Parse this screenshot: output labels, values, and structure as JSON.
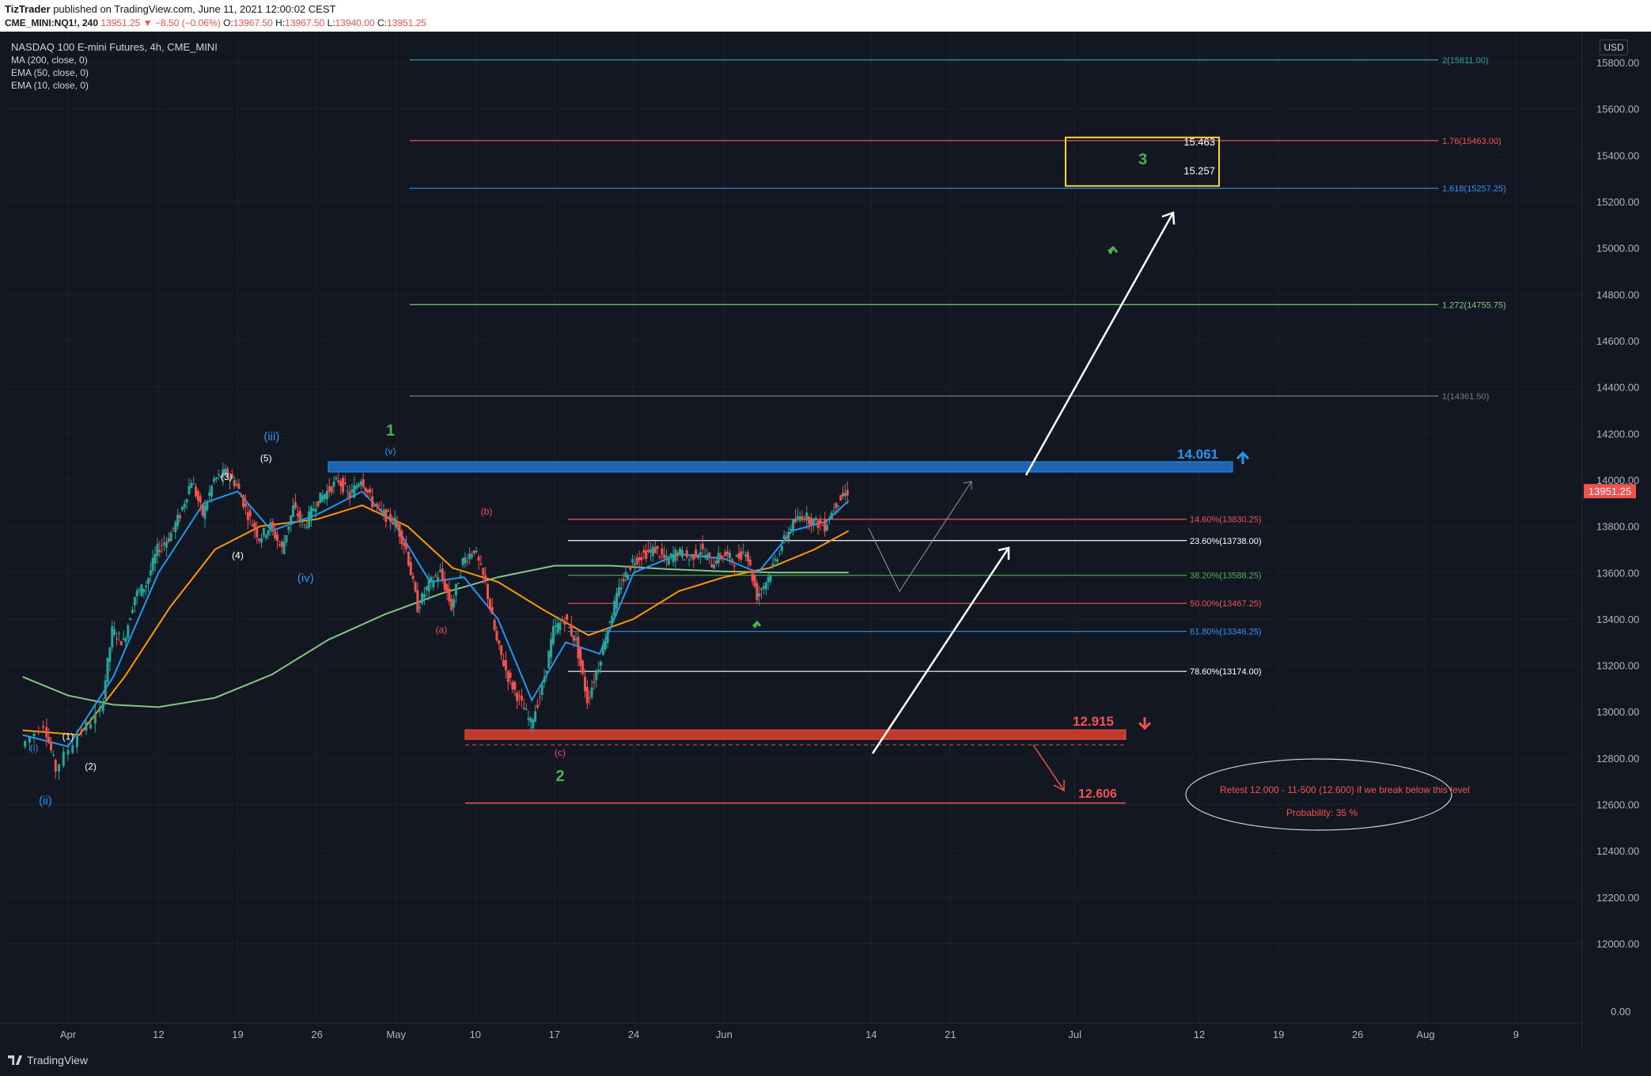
{
  "header": {
    "publisher": "TizTrader",
    "published_text": "published on TradingView.com, June 11, 2021 12:00:02 CEST",
    "symbol_line": "CME_MINI:NQ1!, 240",
    "last": "13951.25",
    "change": "−8.50 (−0.06%)",
    "o_label": "O:",
    "o": "13967.50",
    "h_label": "H:",
    "h": "13967.50",
    "l_label": "L:",
    "l": "13940.00",
    "c_label": "C:",
    "c": "13951.25"
  },
  "legend": {
    "title": "NASDAQ 100 E-mini Futures, 4h, CME_MINI",
    "indicators": [
      "MA (200, close, 0)",
      "EMA (50, close, 0)",
      "EMA (10, close, 0)"
    ]
  },
  "currency": "USD",
  "footer": {
    "brand": "TradingView"
  },
  "colors": {
    "background": "#131722",
    "bull": "#26a69a",
    "bear": "#ef5350",
    "ema10": "#2196f3",
    "ema50": "#ff9800",
    "ma200": "#81c784",
    "wave_green": "#4caf50",
    "wave_blue": "#2196f3",
    "wave_red": "#ef5350",
    "resistance": "#1e64b4",
    "support": "#c0392b",
    "target_box": "#fdd835"
  },
  "chart_data": {
    "type": "candlestick",
    "title": "NASDAQ 100 E-mini Futures, 4h, CME_MINI",
    "ylabel": "",
    "ylim": [
      11700,
      15900
    ],
    "y_ticks": [
      "15800.00",
      "15600.00",
      "15400.00",
      "15200.00",
      "15000.00",
      "14800.00",
      "14600.00",
      "14400.00",
      "14200.00",
      "14000.00",
      "13800.00",
      "13600.00",
      "13400.00",
      "13200.00",
      "13000.00",
      "12800.00",
      "12600.00",
      "12400.00",
      "12200.00",
      "12000.00"
    ],
    "y_bottom_label": "0.00",
    "x_ticks": [
      {
        "label": "Apr",
        "day": 4
      },
      {
        "label": "12",
        "day": 12
      },
      {
        "label": "19",
        "day": 19
      },
      {
        "label": "26",
        "day": 26
      },
      {
        "label": "May",
        "day": 33
      },
      {
        "label": "10",
        "day": 40
      },
      {
        "label": "17",
        "day": 47
      },
      {
        "label": "24",
        "day": 54
      },
      {
        "label": "Jun",
        "day": 62
      },
      {
        "label": "14",
        "day": 75
      },
      {
        "label": "21",
        "day": 82
      },
      {
        "label": "Jul",
        "day": 93
      },
      {
        "label": "12",
        "day": 104
      },
      {
        "label": "19",
        "day": 111
      },
      {
        "label": "26",
        "day": 118
      },
      {
        "label": "Aug",
        "day": 124
      },
      {
        "label": "9",
        "day": 132
      }
    ],
    "price_series": [
      {
        "day": 0,
        "price": 12850
      },
      {
        "day": 2,
        "price": 12950
      },
      {
        "day": 3,
        "price": 12750
      },
      {
        "day": 5,
        "price": 12900
      },
      {
        "day": 7,
        "price": 13000
      },
      {
        "day": 8,
        "price": 13350
      },
      {
        "day": 9,
        "price": 13300
      },
      {
        "day": 10,
        "price": 13500
      },
      {
        "day": 11,
        "price": 13550
      },
      {
        "day": 12,
        "price": 13700
      },
      {
        "day": 13,
        "price": 13750
      },
      {
        "day": 14,
        "price": 13850
      },
      {
        "day": 15,
        "price": 14000
      },
      {
        "day": 16,
        "price": 13850
      },
      {
        "day": 17,
        "price": 14000
      },
      {
        "day": 18,
        "price": 14030
      },
      {
        "day": 19,
        "price": 13980
      },
      {
        "day": 20,
        "price": 13850
      },
      {
        "day": 21,
        "price": 13750
      },
      {
        "day": 22,
        "price": 13800
      },
      {
        "day": 23,
        "price": 13700
      },
      {
        "day": 24,
        "price": 13880
      },
      {
        "day": 25,
        "price": 13800
      },
      {
        "day": 26,
        "price": 13900
      },
      {
        "day": 27,
        "price": 13950
      },
      {
        "day": 28,
        "price": 14000
      },
      {
        "day": 29,
        "price": 13930
      },
      {
        "day": 30,
        "price": 14010
      },
      {
        "day": 31,
        "price": 13900
      },
      {
        "day": 32,
        "price": 13850
      },
      {
        "day": 33,
        "price": 13820
      },
      {
        "day": 34,
        "price": 13700
      },
      {
        "day": 35,
        "price": 13450
      },
      {
        "day": 36,
        "price": 13550
      },
      {
        "day": 37,
        "price": 13600
      },
      {
        "day": 38,
        "price": 13450
      },
      {
        "day": 39,
        "price": 13650
      },
      {
        "day": 40,
        "price": 13700
      },
      {
        "day": 41,
        "price": 13550
      },
      {
        "day": 42,
        "price": 13300
      },
      {
        "day": 43,
        "price": 13150
      },
      {
        "day": 44,
        "price": 13050
      },
      {
        "day": 45,
        "price": 12950
      },
      {
        "day": 46,
        "price": 13100
      },
      {
        "day": 47,
        "price": 13350
      },
      {
        "day": 48,
        "price": 13400
      },
      {
        "day": 49,
        "price": 13300
      },
      {
        "day": 50,
        "price": 13050
      },
      {
        "day": 51,
        "price": 13200
      },
      {
        "day": 52,
        "price": 13400
      },
      {
        "day": 53,
        "price": 13550
      },
      {
        "day": 54,
        "price": 13650
      },
      {
        "day": 55,
        "price": 13680
      },
      {
        "day": 56,
        "price": 13700
      },
      {
        "day": 57,
        "price": 13650
      },
      {
        "day": 58,
        "price": 13690
      },
      {
        "day": 59,
        "price": 13660
      },
      {
        "day": 60,
        "price": 13700
      },
      {
        "day": 61,
        "price": 13640
      },
      {
        "day": 62,
        "price": 13680
      },
      {
        "day": 63,
        "price": 13650
      },
      {
        "day": 64,
        "price": 13700
      },
      {
        "day": 65,
        "price": 13500
      },
      {
        "day": 66,
        "price": 13580
      },
      {
        "day": 67,
        "price": 13700
      },
      {
        "day": 68,
        "price": 13800
      },
      {
        "day": 69,
        "price": 13850
      },
      {
        "day": 70,
        "price": 13820
      },
      {
        "day": 71,
        "price": 13800
      },
      {
        "day": 72,
        "price": 13900
      },
      {
        "day": 73,
        "price": 13950
      }
    ],
    "ema10": [
      {
        "day": 0,
        "price": 12900
      },
      {
        "day": 4,
        "price": 12850
      },
      {
        "day": 8,
        "price": 13150
      },
      {
        "day": 12,
        "price": 13600
      },
      {
        "day": 16,
        "price": 13900
      },
      {
        "day": 19,
        "price": 13950
      },
      {
        "day": 22,
        "price": 13780
      },
      {
        "day": 26,
        "price": 13850
      },
      {
        "day": 30,
        "price": 13950
      },
      {
        "day": 33,
        "price": 13800
      },
      {
        "day": 36,
        "price": 13560
      },
      {
        "day": 39,
        "price": 13580
      },
      {
        "day": 42,
        "price": 13400
      },
      {
        "day": 45,
        "price": 13050
      },
      {
        "day": 48,
        "price": 13300
      },
      {
        "day": 51,
        "price": 13250
      },
      {
        "day": 54,
        "price": 13600
      },
      {
        "day": 58,
        "price": 13680
      },
      {
        "day": 62,
        "price": 13660
      },
      {
        "day": 65,
        "price": 13600
      },
      {
        "day": 68,
        "price": 13780
      },
      {
        "day": 71,
        "price": 13820
      },
      {
        "day": 73,
        "price": 13910
      }
    ],
    "ema50": [
      {
        "day": 0,
        "price": 12920
      },
      {
        "day": 5,
        "price": 12900
      },
      {
        "day": 9,
        "price": 13150
      },
      {
        "day": 13,
        "price": 13450
      },
      {
        "day": 17,
        "price": 13700
      },
      {
        "day": 21,
        "price": 13800
      },
      {
        "day": 26,
        "price": 13830
      },
      {
        "day": 30,
        "price": 13890
      },
      {
        "day": 34,
        "price": 13800
      },
      {
        "day": 38,
        "price": 13620
      },
      {
        "day": 42,
        "price": 13560
      },
      {
        "day": 46,
        "price": 13440
      },
      {
        "day": 50,
        "price": 13330
      },
      {
        "day": 54,
        "price": 13400
      },
      {
        "day": 58,
        "price": 13520
      },
      {
        "day": 62,
        "price": 13580
      },
      {
        "day": 66,
        "price": 13620
      },
      {
        "day": 70,
        "price": 13700
      },
      {
        "day": 73,
        "price": 13780
      }
    ],
    "ma200": [
      {
        "day": 0,
        "price": 13150
      },
      {
        "day": 4,
        "price": 13070
      },
      {
        "day": 8,
        "price": 13030
      },
      {
        "day": 12,
        "price": 13020
      },
      {
        "day": 17,
        "price": 13060
      },
      {
        "day": 22,
        "price": 13160
      },
      {
        "day": 27,
        "price": 13310
      },
      {
        "day": 32,
        "price": 13420
      },
      {
        "day": 37,
        "price": 13510
      },
      {
        "day": 42,
        "price": 13580
      },
      {
        "day": 47,
        "price": 13630
      },
      {
        "day": 52,
        "price": 13630
      },
      {
        "day": 57,
        "price": 13615
      },
      {
        "day": 62,
        "price": 13605
      },
      {
        "day": 67,
        "price": 13600
      },
      {
        "day": 73,
        "price": 13600
      }
    ],
    "fib_extension": [
      {
        "label": "2(15811.00)",
        "price": 15811,
        "color": "#26a69a"
      },
      {
        "label": "1.76(15463.00)",
        "price": 15463,
        "color": "#ef5350"
      },
      {
        "label": "1.618(15257.25)",
        "price": 15257.25,
        "color": "#2196f3"
      },
      {
        "label": "1.272(14755.75)",
        "price": 14755.75,
        "color": "#81c784"
      },
      {
        "label": "1(14361.50)",
        "price": 14361.5,
        "color": "#787b86"
      }
    ],
    "fib_retracement": [
      {
        "label": "14.60%(13830.25)",
        "price": 13830.25,
        "color": "#ef5350"
      },
      {
        "label": "23.60%(13738.00)",
        "price": 13738,
        "color": "#ffffff"
      },
      {
        "label": "38.20%(13588.25)",
        "price": 13588.25,
        "color": "#4caf50"
      },
      {
        "label": "50.00%(13467.25)",
        "price": 13467.25,
        "color": "#ef5350"
      },
      {
        "label": "61.80%(13346.25)",
        "price": 13346.25,
        "color": "#2196f3"
      },
      {
        "label": "78.60%(13174.00)",
        "price": 13174,
        "color": "#ffffff"
      }
    ],
    "zones": {
      "resistance_label": "14.061",
      "resistance_price": 14061,
      "support_label": "12.915",
      "support_price": 12915,
      "lower_target_label": "12.606",
      "lower_target_price": 12606
    },
    "target_box": {
      "top_label": "15.463",
      "bottom_label": "15.257",
      "wave": "3",
      "top_price": 15463,
      "bottom_price": 15257
    },
    "wave_labels": [
      {
        "text": "(i)",
        "day": 1,
        "price": 12830,
        "color": "#2196f3"
      },
      {
        "text": "(1)",
        "day": 4,
        "price": 12880,
        "color": "#ffffff"
      },
      {
        "text": "(2)",
        "day": 6,
        "price": 12750,
        "color": "#ffffff"
      },
      {
        "text": "(ii)",
        "day": 2,
        "price": 12600,
        "color": "#2196f3"
      },
      {
        "text": "(3)",
        "day": 18,
        "price": 14000,
        "color": "#ffffff"
      },
      {
        "text": "(4)",
        "day": 19,
        "price": 13660,
        "color": "#ffffff"
      },
      {
        "text": "(5)",
        "day": 21.5,
        "price": 14080,
        "color": "#ffffff"
      },
      {
        "text": "(iii)",
        "day": 22,
        "price": 14170,
        "color": "#2196f3"
      },
      {
        "text": "(iv)",
        "day": 25,
        "price": 13560,
        "color": "#2196f3"
      },
      {
        "text": "1",
        "day": 32.5,
        "price": 14190,
        "color": "#4caf50"
      },
      {
        "text": "(v)",
        "day": 32.5,
        "price": 14110,
        "color": "#2196f3"
      },
      {
        "text": "(b)",
        "day": 41,
        "price": 13850,
        "color": "#ef5350"
      },
      {
        "text": "(a)",
        "day": 37,
        "price": 13340,
        "color": "#ef5350"
      },
      {
        "text": "(c)",
        "day": 47.5,
        "price": 12810,
        "color": "#ef5350"
      },
      {
        "text": "2",
        "day": 47.5,
        "price": 12700,
        "color": "#4caf50"
      },
      {
        "text": "3",
        "day": 99,
        "price": 15360,
        "color": "#4caf50"
      }
    ],
    "note": {
      "line1": "Retest 12.000 - 11-500 (12.600) if we break below this level",
      "line2": "Probability: 35 %"
    }
  }
}
